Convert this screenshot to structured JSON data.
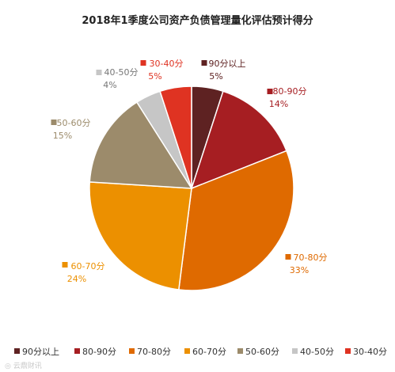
{
  "chart_data": {
    "type": "pie",
    "title": "2018年1季度公司资产负债管理量化评估预计得分",
    "slices": [
      {
        "name": "90分以上",
        "value": 5,
        "label": "5%",
        "color": "#5e2222"
      },
      {
        "name": "80-90分",
        "value": 14,
        "label": "14%",
        "color": "#a61e22"
      },
      {
        "name": "70-80分",
        "value": 33,
        "label": "33%",
        "color": "#df6a00"
      },
      {
        "name": "60-70分",
        "value": 24,
        "label": "24%",
        "color": "#ec9000"
      },
      {
        "name": "50-60分",
        "value": 15,
        "label": "15%",
        "color": "#9c8b6b"
      },
      {
        "name": "40-50分",
        "value": 4,
        "label": "4%",
        "color": "#c6c6c6"
      },
      {
        "name": "30-40分",
        "value": 5,
        "label": "5%",
        "color": "#df3322"
      }
    ],
    "start_angle_deg": 0,
    "direction": "clockwise",
    "legend_position": "bottom",
    "label_style": "outside"
  }
}
